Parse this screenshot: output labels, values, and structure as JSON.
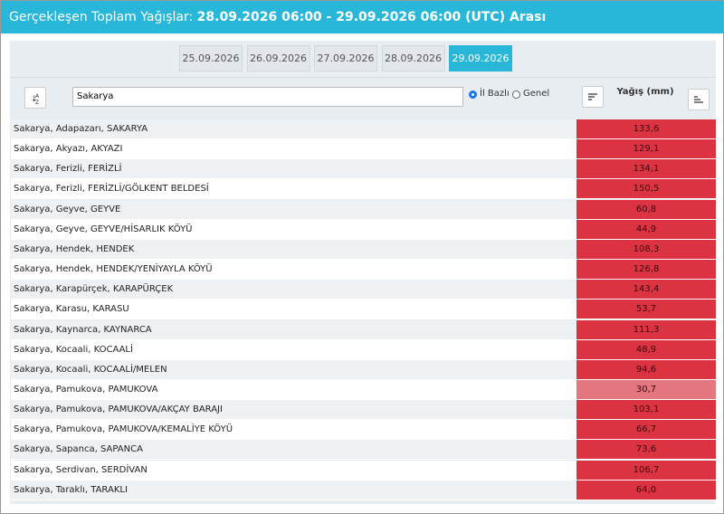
{
  "header": {
    "title_prefix": "Gerçekleşen Toplam Yağışlar:",
    "title_range": "28.09.2026 06:00 - 29.09.2026 06:00 (UTC) Arası"
  },
  "tabs": {
    "items": [
      "25.09.2026",
      "26.09.2026",
      "27.09.2026",
      "28.09.2026",
      "29.09.2026"
    ],
    "active": "29.09.2026"
  },
  "toolbar": {
    "search": "Sakarya",
    "radio_options": [
      "İl Bazlı",
      "Genel"
    ],
    "radio_selected": "İl Bazlı",
    "value_header": "Yağış (mm)"
  },
  "table": {
    "rows": [
      {
        "location": "Sakarya, Adapazarı, SAKARYA",
        "value": "133,6",
        "color": "#dc3342"
      },
      {
        "location": "Sakarya, Akyazı, AKYAZI",
        "value": "129,1",
        "color": "#dc3342"
      },
      {
        "location": "Sakarya, Ferizli, FERİZLİ",
        "value": "134,1",
        "color": "#dc3342"
      },
      {
        "location": "Sakarya, Ferizli, FERİZLİ/GÖLKENT BELDESİ",
        "value": "150,5",
        "color": "#dc3342"
      },
      {
        "location": "Sakarya, Geyve, GEYVE",
        "value": "60,8",
        "color": "#dc3342"
      },
      {
        "location": "Sakarya, Geyve, GEYVE/HİSARLIK KÖYÜ",
        "value": "44,9",
        "color": "#dc3342"
      },
      {
        "location": "Sakarya, Hendek, HENDEK",
        "value": "108,3",
        "color": "#dc3342"
      },
      {
        "location": "Sakarya, Hendek, HENDEK/YENİYAYLA KÖYÜ",
        "value": "126,8",
        "color": "#dc3342"
      },
      {
        "location": "Sakarya, Karapürçek, KARAPÜRÇEK",
        "value": "143,4",
        "color": "#dc3342"
      },
      {
        "location": "Sakarya, Karasu, KARASU",
        "value": "53,7",
        "color": "#dc3342"
      },
      {
        "location": "Sakarya, Kaynarca, KAYNARCA",
        "value": "111,3",
        "color": "#dc3342"
      },
      {
        "location": "Sakarya, Kocaali, KOCAALİ",
        "value": "48,9",
        "color": "#dc3342"
      },
      {
        "location": "Sakarya, Kocaali, KOCAALİ/MELEN",
        "value": "94,6",
        "color": "#dc3342"
      },
      {
        "location": "Sakarya, Pamukova, PAMUKOVA",
        "value": "30,7",
        "color": "#e3767f"
      },
      {
        "location": "Sakarya, Pamukova, PAMUKOVA/AKÇAY BARAJI",
        "value": "103,1",
        "color": "#dc3342"
      },
      {
        "location": "Sakarya, Pamukova, PAMUKOVA/KEMALİYE KÖYÜ",
        "value": "66,7",
        "color": "#dc3342"
      },
      {
        "location": "Sakarya, Sapanca, SAPANCA",
        "value": "73,6",
        "color": "#dc3342"
      },
      {
        "location": "Sakarya, Serdivan, SERDİVAN",
        "value": "106,7",
        "color": "#dc3342"
      },
      {
        "location": "Sakarya, Taraklı, TARAKLI",
        "value": "64,0",
        "color": "#dc3342"
      }
    ]
  }
}
